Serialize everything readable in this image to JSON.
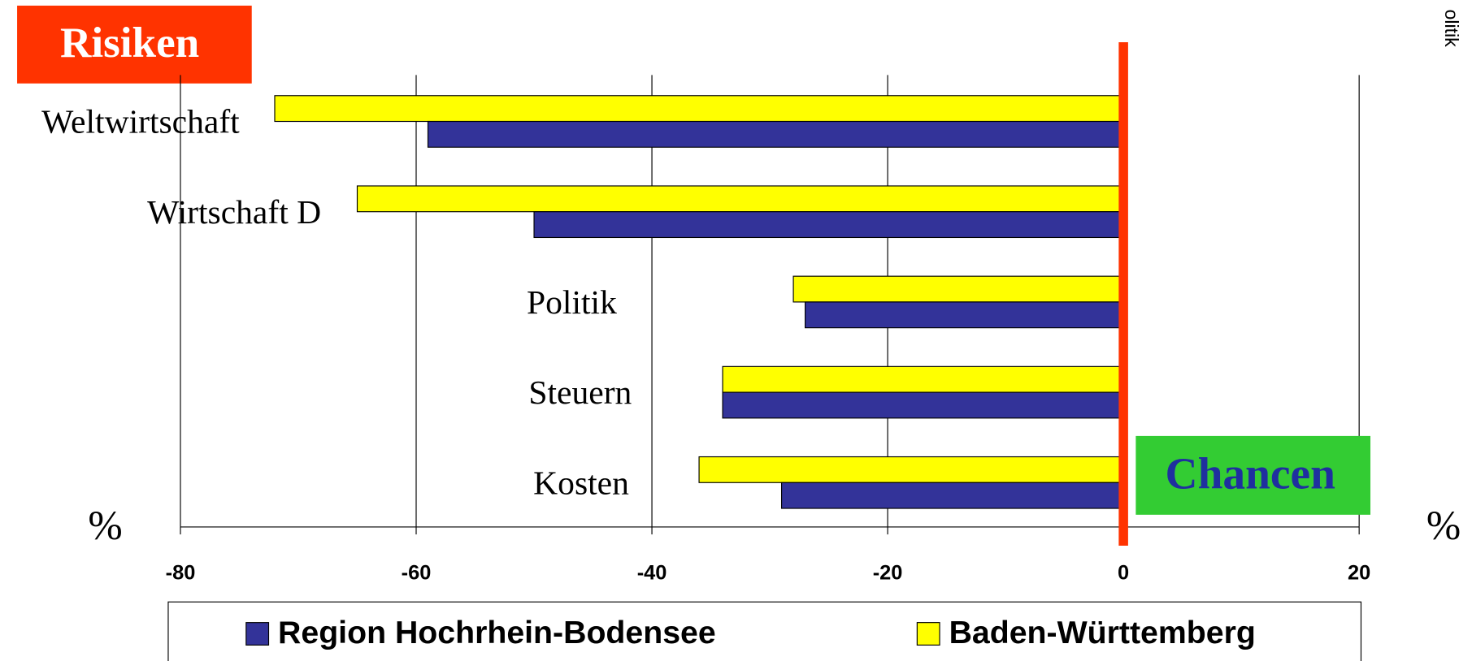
{
  "chart_data": {
    "type": "barh",
    "categories": [
      "Weltwirtschaft",
      "Wirtschaft D",
      "Politik",
      "Steuern",
      "Kosten"
    ],
    "series": [
      {
        "name": "Region Hochrhein-Bodensee",
        "color": "#333399",
        "values": [
          -59,
          -50,
          -27,
          -34,
          -29
        ]
      },
      {
        "name": "Baden-Württemberg",
        "color": "#ffff00",
        "values": [
          -72,
          -65,
          -28,
          -34,
          -36
        ]
      }
    ],
    "xlim": [
      -80,
      20
    ],
    "xticks": [
      -80,
      -60,
      -40,
      -20,
      0,
      20
    ],
    "grid": true,
    "risk_label": "Risiken",
    "chance_label": "Chancen",
    "unit_left": "%",
    "unit_right": "%",
    "side_label": "olitik",
    "zero_line_color": "#ff3300"
  }
}
